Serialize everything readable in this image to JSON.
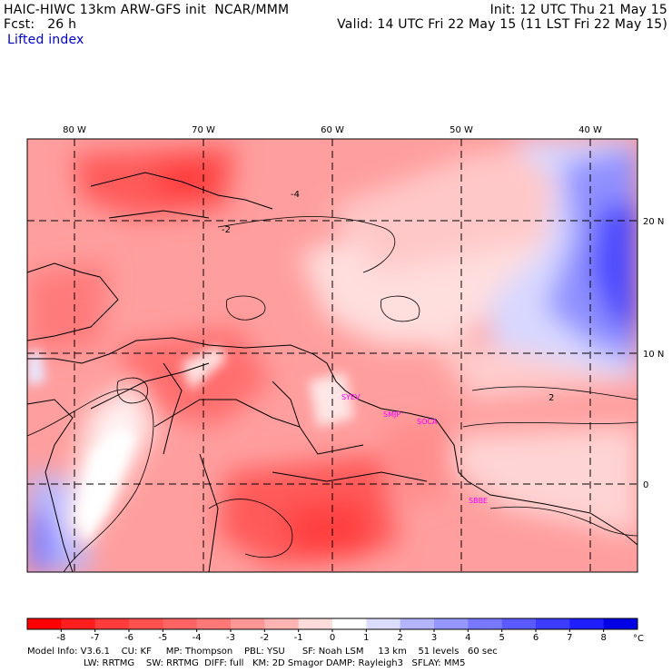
{
  "header": {
    "title_left": "HAIC-HIWC 13km ARW-GFS init  NCAR/MMM",
    "fcst": "Fcst:   26 h",
    "field": "Lifted index",
    "init": "Init: 12 UTC Thu 21 May 15",
    "valid": "Valid: 14 UTC Fri 22 May 15 (11 LST Fri 22 May 15)"
  },
  "map": {
    "lon_labels": [
      "80 W",
      "70 W",
      "60 W",
      "50 W",
      "40 W"
    ],
    "lat_labels": [
      "20 N",
      "10 N",
      "0"
    ],
    "stations": [
      "SYEV",
      "SMJP",
      "SOCA",
      "SBBE"
    ],
    "contour_labels": [
      "-2",
      "2",
      "-4"
    ]
  },
  "colorbar": {
    "ticks": [
      "-8",
      "-7",
      "-6",
      "-5",
      "-4",
      "-3",
      "-2",
      "-1",
      "0",
      "1",
      "2",
      "3",
      "4",
      "5",
      "6",
      "7",
      "8"
    ],
    "unit": "°C",
    "colors": [
      "#ff0000",
      "#ff1e1e",
      "#ff3c3c",
      "#ff5050",
      "#ff6464",
      "#ff7878",
      "#ff9696",
      "#ffb4b4",
      "#ffdcdc",
      "#ffffff",
      "#dcdcff",
      "#b4b4ff",
      "#9696ff",
      "#7878ff",
      "#5a5aff",
      "#3c3cff",
      "#1e1eff",
      "#0000e6"
    ]
  },
  "footer": {
    "line1": "Model Info: V3.6.1    CU: KF     MP: Thompson    PBL: YSU      SF: Noah LSM     13 km    51 levels   60 sec",
    "line2": "LW: RRTMG    SW: RRTMG  DIFF: full   KM: 2D Smagor DAMP: Rayleigh3   SFLAY: MM5"
  }
}
